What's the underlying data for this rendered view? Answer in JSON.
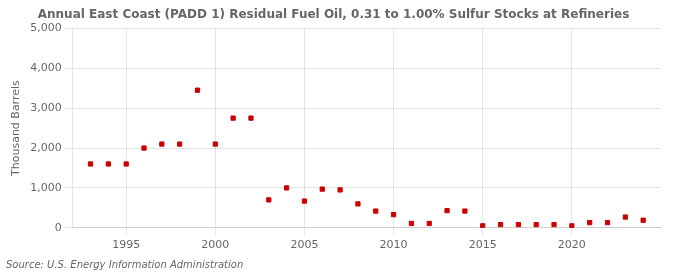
{
  "chart_data": {
    "type": "scatter",
    "title": "Annual East Coast (PADD 1) Residual Fuel Oil, 0.31 to 1.00% Sulfur Stocks at Refineries",
    "ylabel": "Thousand Barrels",
    "annotations": [
      "Source: U.S. Energy Information Administration"
    ],
    "x": [
      1993,
      1994,
      1995,
      1996,
      1997,
      1998,
      1999,
      2000,
      2001,
      2002,
      2003,
      2004,
      2005,
      2006,
      2007,
      2008,
      2009,
      2010,
      2011,
      2012,
      2013,
      2014,
      2015,
      2016,
      2017,
      2018,
      2019,
      2020,
      2021,
      2022,
      2023,
      2024
    ],
    "values": [
      1600,
      1600,
      1600,
      2000,
      2100,
      2100,
      3450,
      2100,
      2750,
      2750,
      700,
      1000,
      670,
      970,
      950,
      600,
      420,
      330,
      110,
      110,
      430,
      420,
      50,
      80,
      80,
      80,
      80,
      50,
      130,
      130,
      270,
      190
    ],
    "color": "#cc0000",
    "marker": "square",
    "xlim": [
      1992,
      2025
    ],
    "xticks": [
      1995,
      2000,
      2005,
      2010,
      2015,
      2020
    ],
    "ylim": [
      0,
      5000
    ],
    "yticks": [
      0,
      {
        "value": 1000,
        "label": "1,000"
      },
      {
        "value": 2000,
        "label": "2,000"
      },
      {
        "value": 3000,
        "label": "3,000"
      },
      {
        "value": 4000,
        "label": "4,000"
      },
      {
        "value": 5000,
        "label": "5,000"
      }
    ],
    "grid": true
  }
}
